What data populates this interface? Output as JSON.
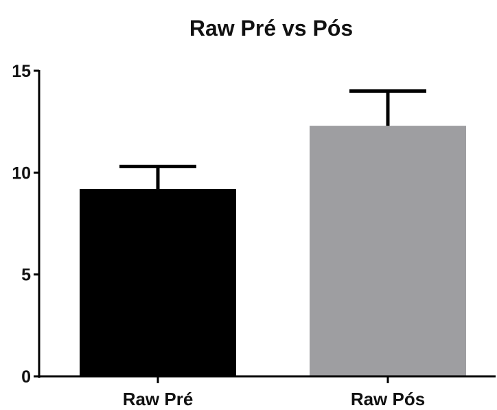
{
  "chart_data": {
    "type": "bar",
    "title": "Raw Pré vs Pós",
    "xlabel": "",
    "ylabel": "",
    "categories": [
      "Raw Pré",
      "Raw Pós"
    ],
    "values": [
      9.2,
      12.3
    ],
    "error_upper": [
      10.3,
      14.0
    ],
    "ylim": [
      0,
      15
    ],
    "yticks": [
      "0",
      "5",
      "10",
      "15"
    ],
    "grid": false,
    "legend": "none",
    "colors": [
      "#000000",
      "#9e9ea1"
    ],
    "axis_color": "#000000"
  }
}
